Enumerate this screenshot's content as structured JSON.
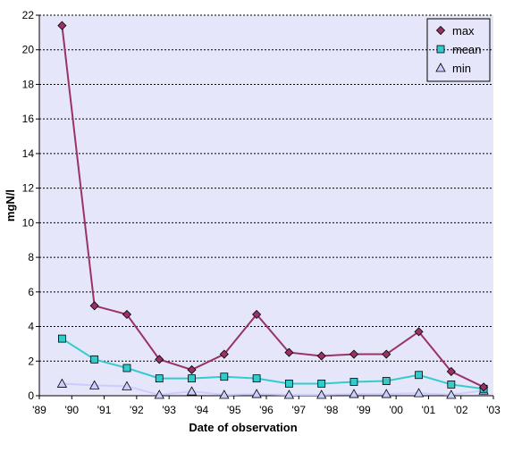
{
  "chart_data": {
    "type": "line",
    "xlabel": "Date of observation",
    "ylabel": "mgN/l",
    "xlim": [
      1989,
      2003
    ],
    "ylim": [
      0,
      22
    ],
    "x_tick_values": [
      1989,
      1990,
      1991,
      1992,
      1993,
      1994,
      1995,
      1996,
      1997,
      1998,
      1999,
      2000,
      2001,
      2002,
      2003
    ],
    "x_tick_labels": [
      "'89",
      "'90",
      "'91",
      "'92",
      "'93",
      "'94",
      "'95",
      "'96",
      "'97",
      "'98",
      "'99",
      "'00",
      "'01",
      "'02",
      "'03"
    ],
    "y_ticks": [
      0,
      2,
      4,
      6,
      8,
      10,
      12,
      14,
      16,
      18,
      20,
      22
    ],
    "x": [
      1989.7,
      1990.7,
      1991.7,
      1992.7,
      1993.7,
      1994.7,
      1995.7,
      1996.7,
      1997.7,
      1998.7,
      1999.7,
      2000.7,
      2001.7,
      2002.7
    ],
    "series": [
      {
        "name": "max",
        "marker": "diamond",
        "color": "#993366",
        "fill": "#993366",
        "values": [
          21.4,
          5.2,
          4.7,
          2.1,
          1.5,
          2.4,
          4.7,
          2.5,
          2.3,
          2.4,
          2.4,
          3.7,
          1.4,
          0.5
        ]
      },
      {
        "name": "mean",
        "marker": "square",
        "color": "#33CCCC",
        "fill": "#33CCCC",
        "values": [
          3.3,
          2.1,
          1.6,
          1.0,
          1.0,
          1.1,
          1.0,
          0.7,
          0.7,
          0.8,
          0.85,
          1.2,
          0.65,
          0.4
        ]
      },
      {
        "name": "min",
        "marker": "triangle",
        "color": "#CCCCFF",
        "fill": "#CCCCFF",
        "values": [
          0.7,
          0.6,
          0.55,
          0.05,
          0.25,
          0.05,
          0.1,
          0.05,
          0.05,
          0.1,
          0.1,
          0.15,
          0.05,
          0.3
        ]
      }
    ],
    "legend_position": "top-right",
    "grid": "horizontal-dashed",
    "plot_background": "#E6E6FA"
  }
}
